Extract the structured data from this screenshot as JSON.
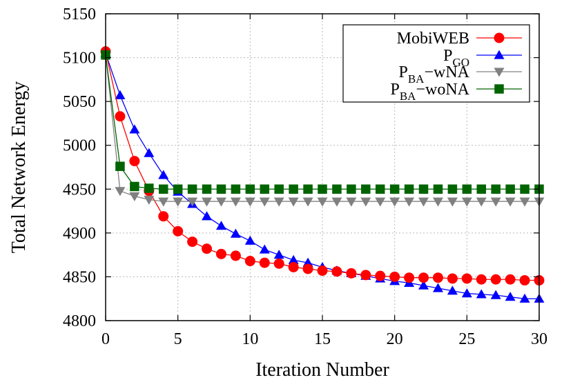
{
  "chart_data": {
    "type": "line",
    "title": "",
    "xlabel": "Iteration Number",
    "ylabel": "Total Network Energy",
    "xlim": [
      0,
      30
    ],
    "ylim": [
      4800,
      5150
    ],
    "xticks": [
      0,
      5,
      10,
      15,
      20,
      25,
      30
    ],
    "yticks": [
      4800,
      4850,
      4900,
      4950,
      5000,
      5050,
      5100,
      5150
    ],
    "grid": true,
    "legend_position": "top-right",
    "x": [
      0,
      1,
      2,
      3,
      4,
      5,
      6,
      7,
      8,
      9,
      10,
      11,
      12,
      13,
      14,
      15,
      16,
      17,
      18,
      19,
      20,
      21,
      22,
      23,
      24,
      25,
      26,
      27,
      28,
      29,
      30
    ],
    "series": [
      {
        "name": "MobiWEB",
        "legend_main": "MobiWEB",
        "legend_sub": "",
        "legend_suffix": "",
        "color": "#ff0000",
        "marker": "circle",
        "values": [
          5107,
          5033,
          4982,
          4948,
          4919,
          4902,
          4890,
          4882,
          4876,
          4874,
          4868,
          4866,
          4865,
          4861,
          4859,
          4857,
          4856,
          4854,
          4852,
          4851,
          4850,
          4849,
          4849,
          4849,
          4848,
          4848,
          4847,
          4847,
          4847,
          4846,
          4846
        ]
      },
      {
        "name": "PGO",
        "legend_main": "P",
        "legend_sub": "GO",
        "legend_suffix": "",
        "color": "#0000ff",
        "marker": "triangle-up",
        "values": [
          5105,
          5057,
          5018,
          4991,
          4966,
          4947,
          4933,
          4919,
          4908,
          4899,
          4891,
          4881,
          4875,
          4869,
          4866,
          4861,
          4857,
          4854,
          4851,
          4848,
          4845,
          4843,
          4840,
          4837,
          4834,
          4831,
          4830,
          4829,
          4827,
          4825,
          4825
        ]
      },
      {
        "name": "PBA-wNA",
        "legend_main": "P",
        "legend_sub": "BA",
        "legend_suffix": "−wNA",
        "color": "#808080",
        "marker": "triangle-down",
        "values": [
          5104,
          4948,
          4942,
          4938,
          4936,
          4936,
          4936,
          4936,
          4936,
          4936,
          4936,
          4936,
          4936,
          4936,
          4936,
          4936,
          4936,
          4936,
          4936,
          4936,
          4936,
          4936,
          4936,
          4936,
          4936,
          4936,
          4936,
          4936,
          4936,
          4936,
          4936
        ]
      },
      {
        "name": "PBA-woNA",
        "legend_main": "P",
        "legend_sub": "BA",
        "legend_suffix": "−woNA",
        "color": "#006400",
        "marker": "square",
        "values": [
          5103,
          4976,
          4953,
          4951,
          4950,
          4950,
          4950,
          4950,
          4950,
          4950,
          4950,
          4950,
          4950,
          4950,
          4950,
          4950,
          4950,
          4950,
          4950,
          4950,
          4950,
          4950,
          4950,
          4950,
          4950,
          4950,
          4950,
          4950,
          4950,
          4950,
          4950
        ]
      }
    ]
  }
}
